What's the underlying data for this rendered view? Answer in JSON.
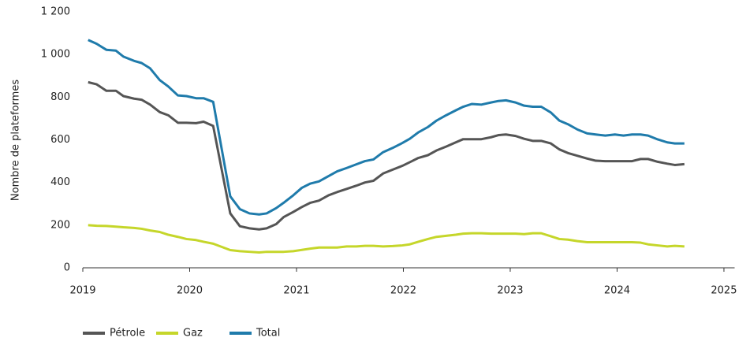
{
  "chart_data": {
    "type": "line",
    "y_label": "Nombre de plateformes",
    "x": [
      2019.05,
      2019.13,
      2019.22,
      2019.31,
      2019.38,
      2019.48,
      2019.55,
      2019.63,
      2019.72,
      2019.8,
      2019.89,
      2019.97,
      2020.06,
      2020.13,
      2020.22,
      2020.38,
      2020.47,
      2020.56,
      2020.65,
      2020.72,
      2020.81,
      2020.88,
      2020.97,
      2021.05,
      2021.13,
      2021.21,
      2021.3,
      2021.38,
      2021.47,
      2021.56,
      2021.64,
      2021.72,
      2021.81,
      2021.9,
      2021.99,
      2022.06,
      2022.14,
      2022.23,
      2022.31,
      2022.4,
      2022.49,
      2022.56,
      2022.64,
      2022.73,
      2022.82,
      2022.89,
      2022.96,
      2023.05,
      2023.13,
      2023.21,
      2023.29,
      2023.38,
      2023.46,
      2023.54,
      2023.63,
      2023.72,
      2023.8,
      2023.89,
      2023.98,
      2024.06,
      2024.14,
      2024.22,
      2024.29,
      2024.38,
      2024.47,
      2024.54,
      2024.63
    ],
    "series": [
      {
        "name": "Pétrole",
        "color": "#555555",
        "values": [
          870,
          860,
          830,
          830,
          805,
          793,
          788,
          765,
          730,
          715,
          680,
          680,
          678,
          685,
          665,
          255,
          195,
          185,
          180,
          185,
          205,
          238,
          262,
          285,
          305,
          315,
          340,
          355,
          370,
          385,
          400,
          408,
          442,
          460,
          478,
          495,
          515,
          528,
          550,
          568,
          588,
          603,
          603,
          603,
          612,
          622,
          625,
          618,
          605,
          595,
          595,
          583,
          555,
          538,
          525,
          512,
          502,
          500,
          500,
          500,
          500,
          510,
          510,
          497,
          488,
          482,
          486
        ]
      },
      {
        "name": "Gaz",
        "color": "#c5d62a",
        "values": [
          200,
          197,
          196,
          193,
          190,
          187,
          183,
          175,
          168,
          155,
          145,
          135,
          130,
          122,
          113,
          83,
          78,
          75,
          72,
          75,
          75,
          75,
          78,
          84,
          90,
          95,
          95,
          95,
          100,
          100,
          103,
          103,
          100,
          102,
          105,
          110,
          122,
          135,
          145,
          150,
          155,
          160,
          162,
          162,
          160,
          160,
          160,
          160,
          158,
          162,
          162,
          148,
          135,
          132,
          125,
          120,
          120,
          120,
          120,
          120,
          120,
          118,
          110,
          105,
          100,
          103,
          100
        ]
      },
      {
        "name": "Total",
        "color": "#1f7bab",
        "values": [
          1068,
          1050,
          1022,
          1018,
          990,
          970,
          960,
          935,
          880,
          850,
          808,
          805,
          795,
          795,
          778,
          335,
          275,
          255,
          250,
          255,
          280,
          305,
          340,
          375,
          395,
          405,
          430,
          452,
          468,
          485,
          500,
          508,
          542,
          562,
          585,
          605,
          635,
          660,
          690,
          715,
          738,
          755,
          768,
          765,
          775,
          782,
          785,
          775,
          760,
          755,
          755,
          728,
          690,
          673,
          648,
          630,
          625,
          620,
          625,
          620,
          625,
          625,
          620,
          602,
          588,
          583,
          583
        ]
      }
    ],
    "xlim": [
      2019,
      2025.1
    ],
    "xticks": [
      2019,
      2020,
      2021,
      2022,
      2023,
      2024,
      2025
    ],
    "ylim": [
      0,
      1200
    ],
    "yticks": [
      0,
      200,
      400,
      600,
      800,
      {
        "value": 1000,
        "label": "1 000"
      },
      {
        "value": 1200,
        "label": "1 200"
      }
    ]
  }
}
